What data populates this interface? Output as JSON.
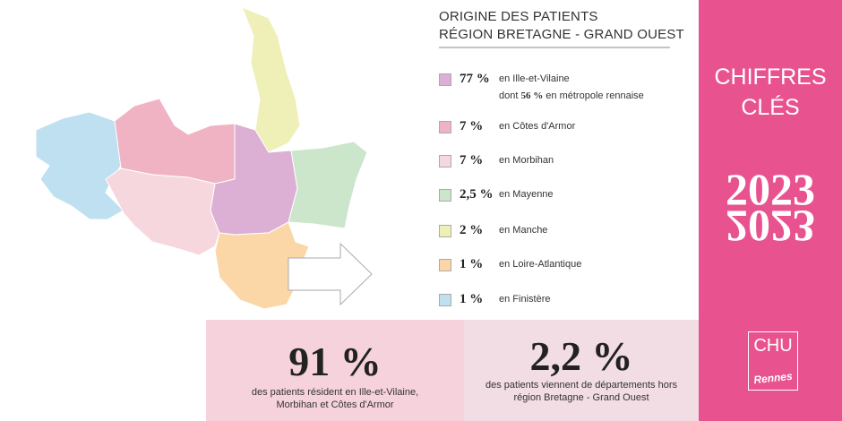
{
  "header": {
    "title_line1": "ORIGINE DES PATIENTS",
    "title_line2": "RÉGION BRETAGNE - GRAND OUEST"
  },
  "legend": [
    {
      "value": "77 %",
      "label": "en Ille-et-Vilaine",
      "color": "#dcb0d5"
    },
    {
      "value": "7 %",
      "label": "en Côtes d'Armor",
      "color": "#f0b3c3"
    },
    {
      "value": "7 %",
      "label": "en Morbihan",
      "color": "#f7d7de"
    },
    {
      "value": "2,5 %",
      "label": "en Mayenne",
      "color": "#cce6cc"
    },
    {
      "value": "2 %",
      "label": "en Manche",
      "color": "#eef0b8"
    },
    {
      "value": "1 %",
      "label": "en Loire-Atlantique",
      "color": "#fbd7a8"
    },
    {
      "value": "1 %",
      "label": "en Finistère",
      "color": "#bfe0f0"
    }
  ],
  "legend_note": {
    "prefix": "dont",
    "value": "56 %",
    "suffix": "en métropole rennaise"
  },
  "stats": [
    {
      "value": "91 %",
      "text_line1": "des patients résident en Ille-et-Vilaine,",
      "text_line2": "Morbihan et Côtes d'Armor"
    },
    {
      "value": "2,2 %",
      "text_line1": "des patients viennent de départements hors",
      "text_line2": "région Bretagne - Grand Ouest"
    }
  ],
  "side": {
    "title_line1": "CHIFFRES",
    "title_line2": "CLÉS",
    "year_top": "2023",
    "year_bottom": "2023",
    "logo_top": "CHU",
    "logo_bottom": "Rennes"
  }
}
